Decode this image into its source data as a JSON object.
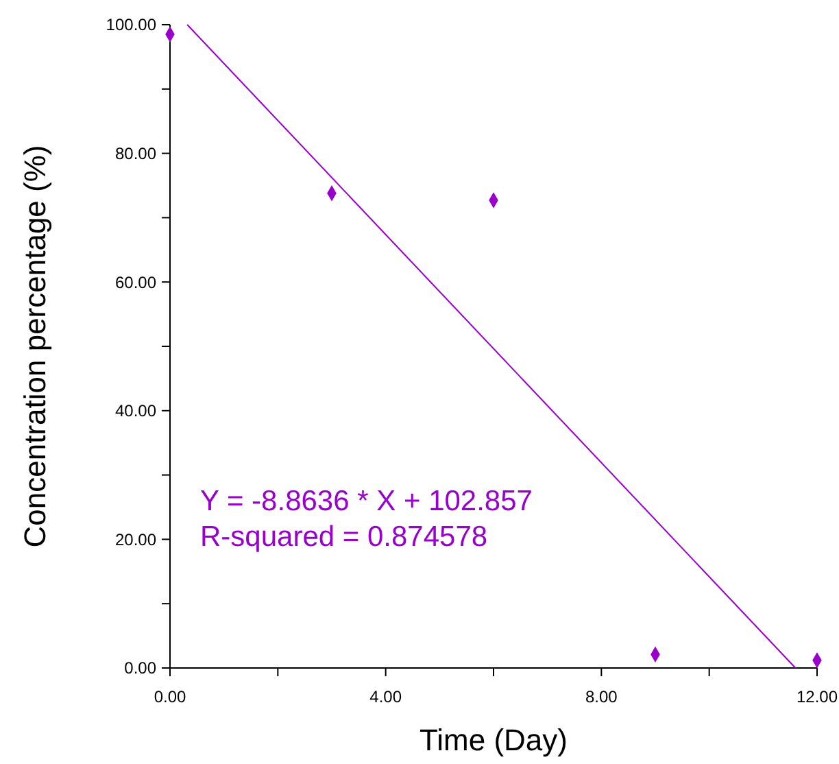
{
  "chart_data": {
    "type": "scatter",
    "xlabel": "Time (Day)",
    "ylabel": "Concentration percentage (%)",
    "xlim": [
      0,
      12
    ],
    "ylim": [
      0,
      100
    ],
    "xticks": [
      {
        "value": 0,
        "label": "0.00"
      },
      {
        "value": 2,
        "label": null
      },
      {
        "value": 4,
        "label": "4.00"
      },
      {
        "value": 6,
        "label": null
      },
      {
        "value": 8,
        "label": "8.00"
      },
      {
        "value": 10,
        "label": null
      },
      {
        "value": 12,
        "label": "12.00"
      }
    ],
    "yticks": [
      {
        "value": 0,
        "label": "0.00"
      },
      {
        "value": 10,
        "label": null
      },
      {
        "value": 20,
        "label": "20.00"
      },
      {
        "value": 30,
        "label": null
      },
      {
        "value": 40,
        "label": "40.00"
      },
      {
        "value": 50,
        "label": null
      },
      {
        "value": 60,
        "label": "60.00"
      },
      {
        "value": 70,
        "label": null
      },
      {
        "value": 80,
        "label": "80.00"
      },
      {
        "value": 90,
        "label": null
      },
      {
        "value": 100,
        "label": "100.00"
      }
    ],
    "grid": false,
    "series": [
      {
        "marker": "diamond",
        "color": "#9900cc",
        "x": [
          0,
          3,
          6,
          9,
          12
        ],
        "values": [
          98.5,
          73.8,
          72.7,
          2.1,
          1.2
        ]
      },
      {
        "type": "line",
        "color": "#9900cc",
        "x": [
          0.32,
          11.6
        ],
        "values": [
          100,
          0
        ]
      }
    ],
    "annotations": [
      "Y = -8.8636 * X + 102.857",
      "R-squared = 0.874578"
    ]
  }
}
